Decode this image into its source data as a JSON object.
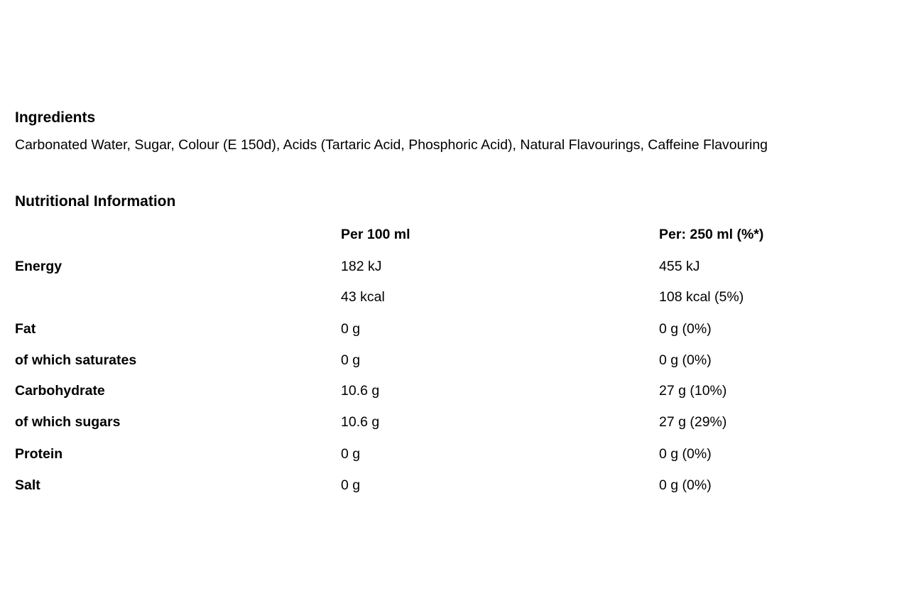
{
  "ingredients": {
    "title": "Ingredients",
    "text": "Carbonated Water, Sugar, Colour (E 150d), Acids (Tartaric Acid, Phosphoric Acid), Natural Flavourings, Caffeine Flavouring"
  },
  "nutrition": {
    "title": "Nutritional Information",
    "columns": [
      "",
      "Per 100 ml",
      "Per: 250 ml (%*)"
    ],
    "rows": [
      {
        "label": "Energy",
        "per100": "182 kJ",
        "per250": "455 kJ"
      },
      {
        "label": "",
        "per100": "43 kcal",
        "per250": "108 kcal (5%)"
      },
      {
        "label": "Fat",
        "per100": "0 g",
        "per250": "0 g (0%)"
      },
      {
        "label": "of which saturates",
        "per100": "0 g",
        "per250": "0 g (0%)"
      },
      {
        "label": "Carbohydrate",
        "per100": "10.6 g",
        "per250": "27 g (10%)"
      },
      {
        "label": "of which sugars",
        "per100": "10.6 g",
        "per250": "27 g (29%)"
      },
      {
        "label": "Protein",
        "per100": "0 g",
        "per250": "0 g (0%)"
      },
      {
        "label": "Salt",
        "per100": "0 g",
        "per250": "0 g (0%)"
      }
    ]
  }
}
